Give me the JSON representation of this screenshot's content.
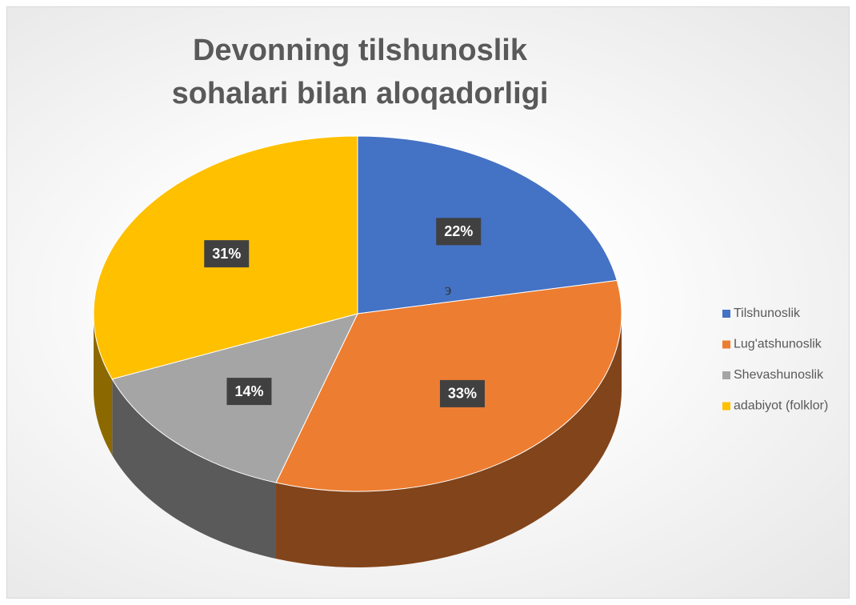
{
  "chart_data": {
    "type": "pie3d",
    "title": "Devonning tilshunoslik sohalari bilan aloqadorligi",
    "categories": [
      "Tilshunoslik",
      "Lug'atshunoslik",
      "Shevashunoslik",
      "adabiyot (folklor)"
    ],
    "values": [
      22,
      33,
      14,
      31
    ],
    "value_labels": [
      "22%",
      "33%",
      "14%",
      "31%"
    ],
    "colors": [
      "#4472c4",
      "#ed7d31",
      "#a5a5a5",
      "#ffc000"
    ],
    "legend": "right",
    "annotation": "э"
  }
}
